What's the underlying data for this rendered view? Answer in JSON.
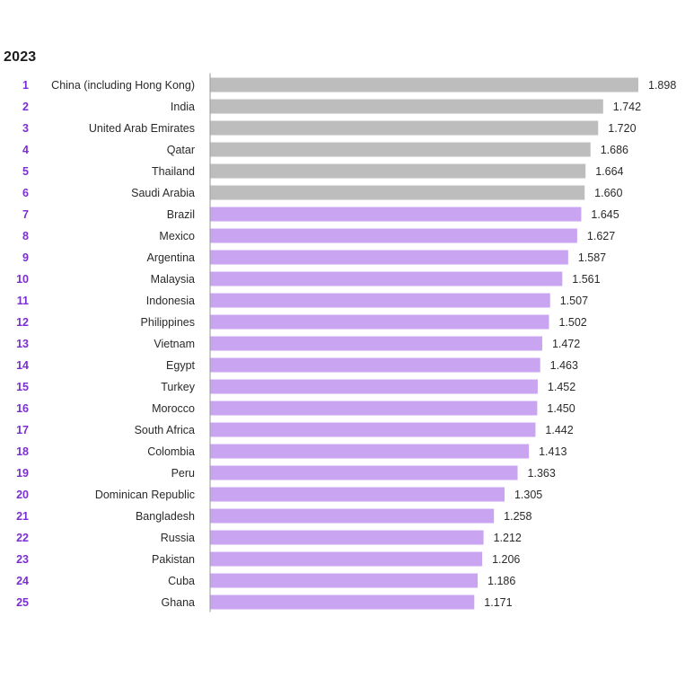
{
  "chart_data": {
    "type": "bar",
    "title": "2023",
    "orientation": "horizontal",
    "xlim": [
      0,
      1.898
    ],
    "grid": false,
    "highlight_colors": {
      "top": "#bdbdbd",
      "rest": "#c9a4f0",
      "rank_text": "#7a2fd0",
      "axis": "#9a9a9a"
    },
    "rows": [
      {
        "rank": "1",
        "category": "China (including Hong Kong)",
        "value": 1.898,
        "label": "1.898",
        "group": "top"
      },
      {
        "rank": "2",
        "category": "India",
        "value": 1.742,
        "label": "1.742",
        "group": "top"
      },
      {
        "rank": "3",
        "category": "United Arab Emirates",
        "value": 1.72,
        "label": "1.720",
        "group": "top"
      },
      {
        "rank": "4",
        "category": "Qatar",
        "value": 1.686,
        "label": "1.686",
        "group": "top"
      },
      {
        "rank": "5",
        "category": "Thailand",
        "value": 1.664,
        "label": "1.664",
        "group": "top"
      },
      {
        "rank": "6",
        "category": "Saudi Arabia",
        "value": 1.66,
        "label": "1.660",
        "group": "top"
      },
      {
        "rank": "7",
        "category": "Brazil",
        "value": 1.645,
        "label": "1.645",
        "group": "rest"
      },
      {
        "rank": "8",
        "category": "Mexico",
        "value": 1.627,
        "label": "1.627",
        "group": "rest"
      },
      {
        "rank": "9",
        "category": "Argentina",
        "value": 1.587,
        "label": "1.587",
        "group": "rest"
      },
      {
        "rank": "10",
        "category": "Malaysia",
        "value": 1.561,
        "label": "1.561",
        "group": "rest"
      },
      {
        "rank": "11",
        "category": "Indonesia",
        "value": 1.507,
        "label": "1.507",
        "group": "rest"
      },
      {
        "rank": "12",
        "category": "Philippines",
        "value": 1.502,
        "label": "1.502",
        "group": "rest"
      },
      {
        "rank": "13",
        "category": "Vietnam",
        "value": 1.472,
        "label": "1.472",
        "group": "rest"
      },
      {
        "rank": "14",
        "category": "Egypt",
        "value": 1.463,
        "label": "1.463",
        "group": "rest"
      },
      {
        "rank": "15",
        "category": "Turkey",
        "value": 1.452,
        "label": "1.452",
        "group": "rest"
      },
      {
        "rank": "16",
        "category": "Morocco",
        "value": 1.45,
        "label": "1.450",
        "group": "rest"
      },
      {
        "rank": "17",
        "category": "South Africa",
        "value": 1.442,
        "label": "1.442",
        "group": "rest"
      },
      {
        "rank": "18",
        "category": "Colombia",
        "value": 1.413,
        "label": "1.413",
        "group": "rest"
      },
      {
        "rank": "19",
        "category": "Peru",
        "value": 1.363,
        "label": "1.363",
        "group": "rest"
      },
      {
        "rank": "20",
        "category": "Dominican Republic",
        "value": 1.305,
        "label": "1.305",
        "group": "rest"
      },
      {
        "rank": "21",
        "category": "Bangladesh",
        "value": 1.258,
        "label": "1.258",
        "group": "rest"
      },
      {
        "rank": "22",
        "category": "Russia",
        "value": 1.212,
        "label": "1.212",
        "group": "rest"
      },
      {
        "rank": "23",
        "category": "Pakistan",
        "value": 1.206,
        "label": "1.206",
        "group": "rest"
      },
      {
        "rank": "24",
        "category": "Cuba",
        "value": 1.186,
        "label": "1.186",
        "group": "rest"
      },
      {
        "rank": "25",
        "category": "Ghana",
        "value": 1.171,
        "label": "1.171",
        "group": "rest"
      }
    ]
  }
}
